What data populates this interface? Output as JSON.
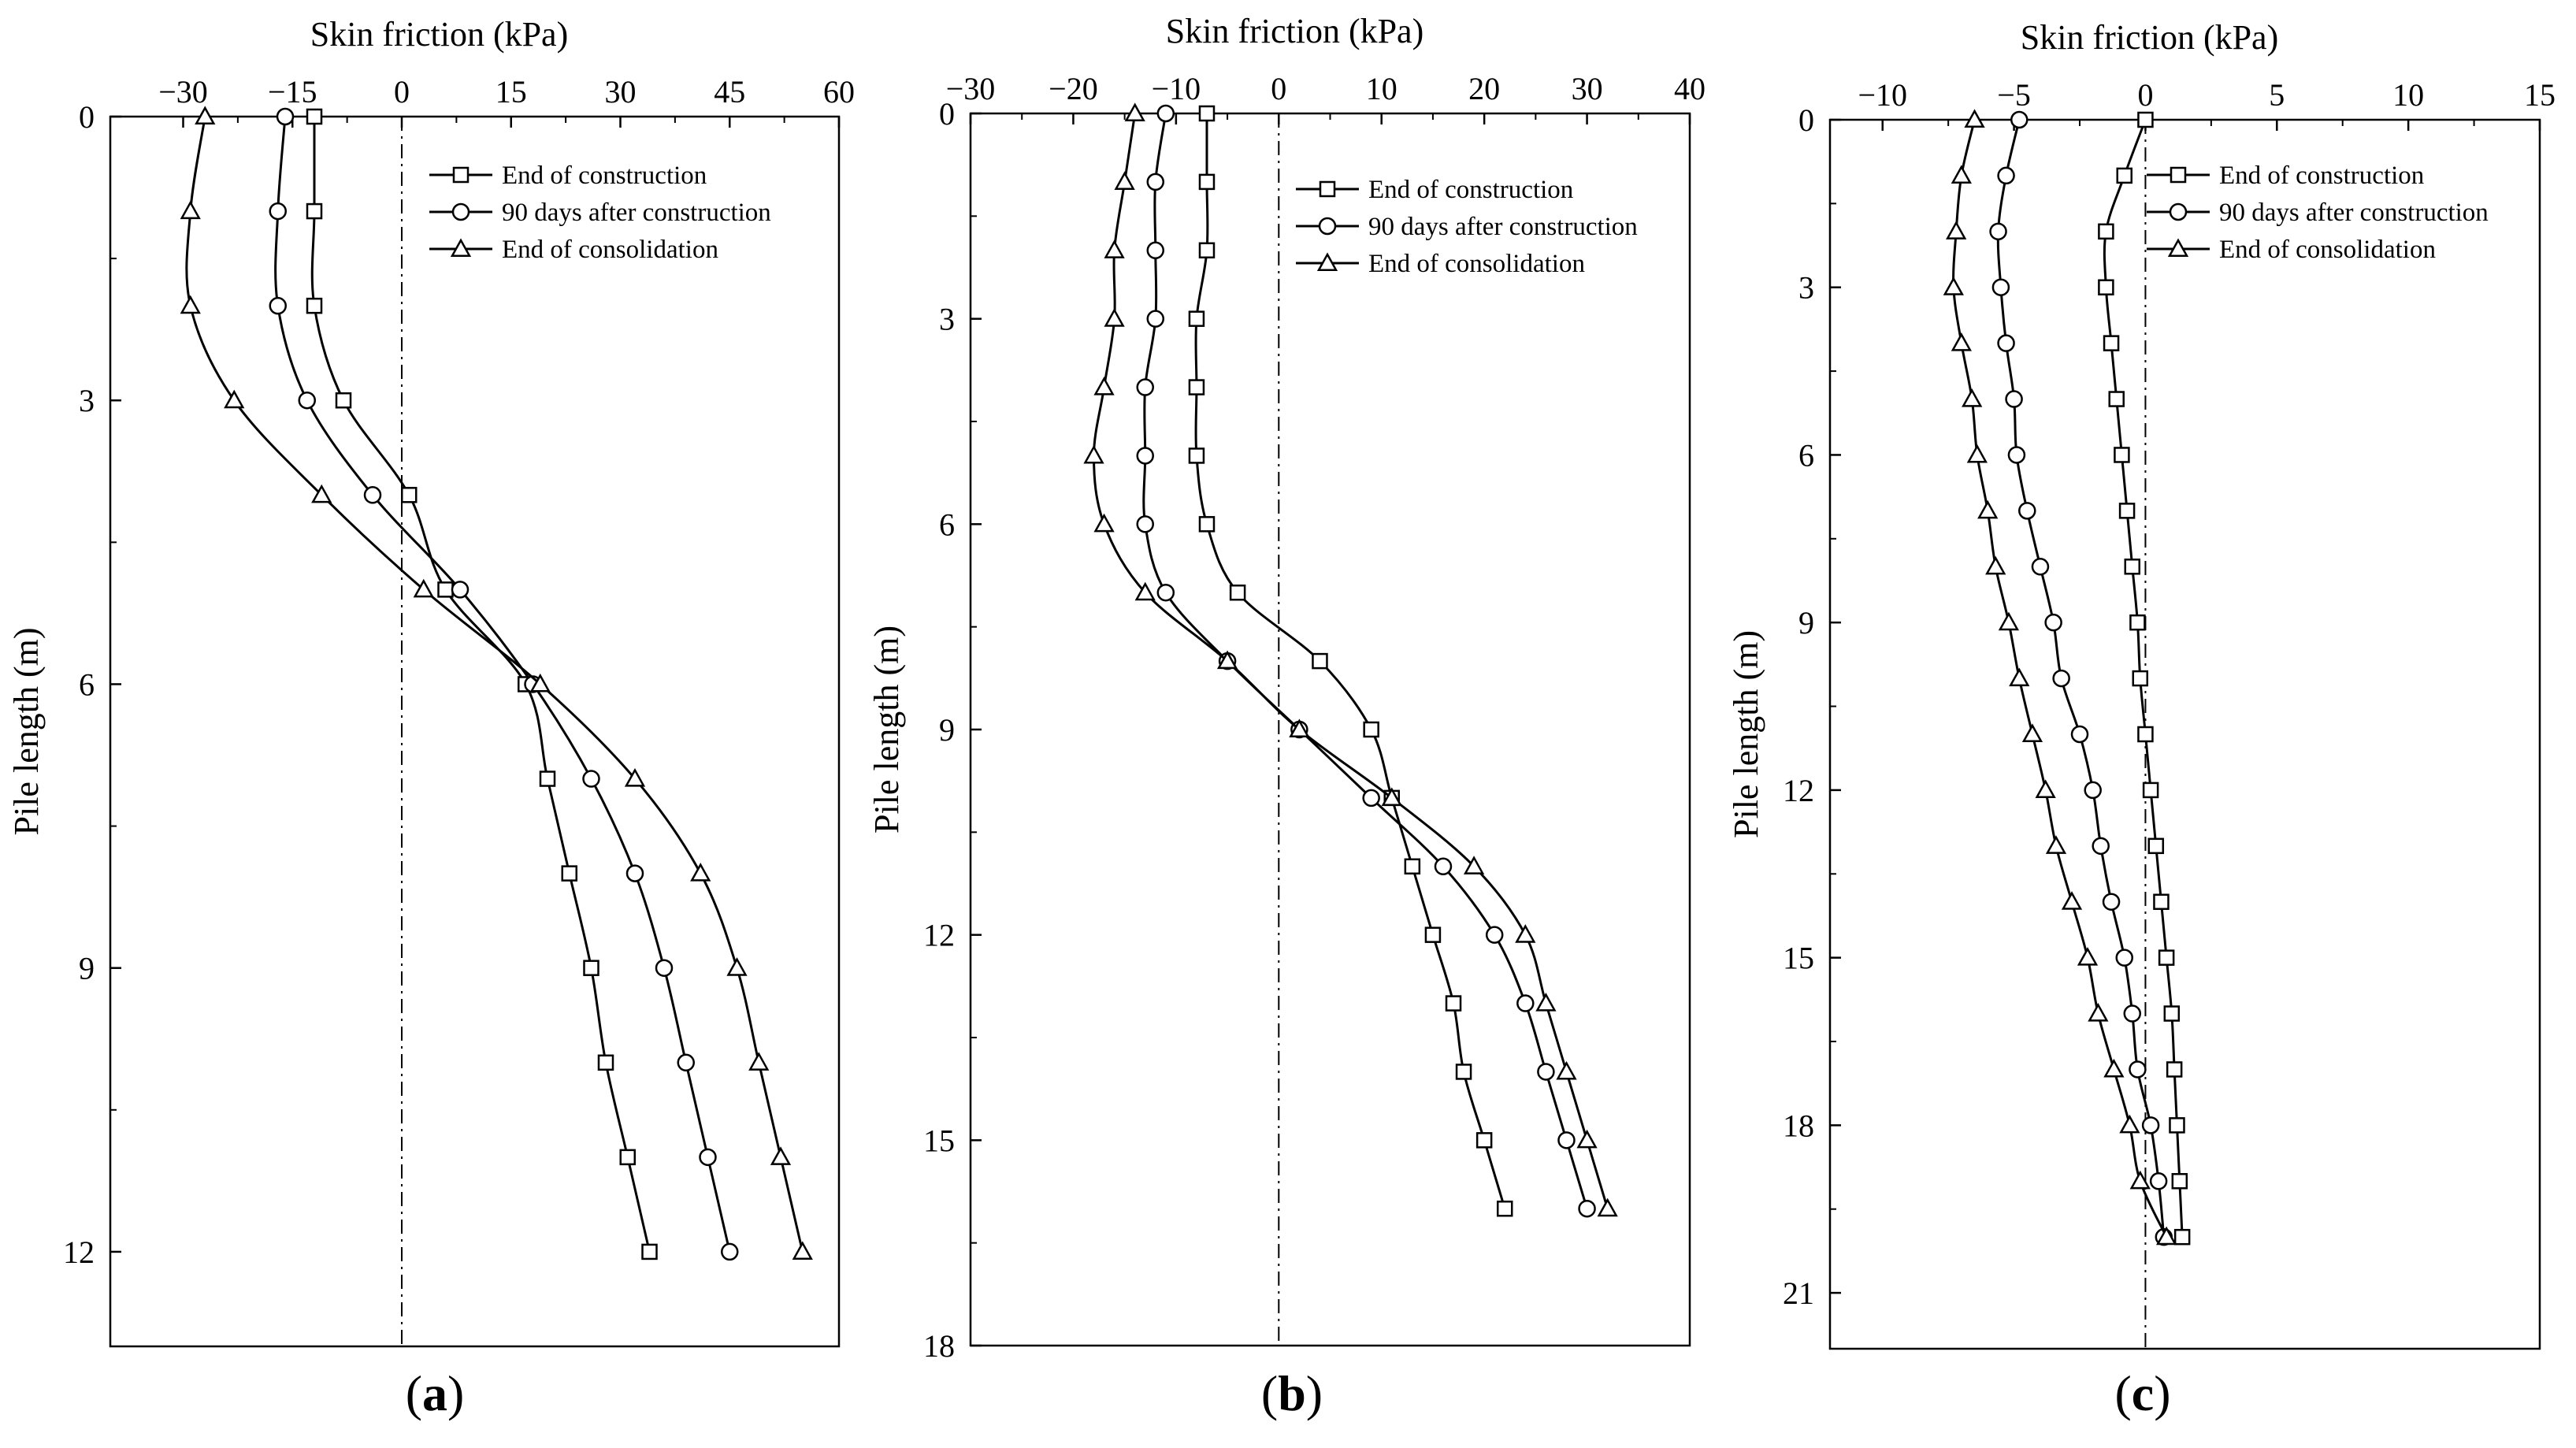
{
  "chart_data": [
    {
      "type": "line",
      "panel_label": "a",
      "xlabel": "Skin friction (kPa)",
      "ylabel": "Pile length (m)",
      "xlim": [
        -40,
        60
      ],
      "ylim": [
        13,
        0
      ],
      "xticks": [
        -30,
        -15,
        0,
        15,
        30,
        45,
        60
      ],
      "yticks": [
        0,
        3,
        6,
        9,
        12
      ],
      "grid": false,
      "legend_position": "top-right",
      "zero_reference_line": true,
      "series": [
        {
          "name": "End of construction",
          "marker": "square",
          "points": [
            [
              -12,
              0
            ],
            [
              -12,
              1
            ],
            [
              -12,
              2
            ],
            [
              -8,
              3
            ],
            [
              1,
              4
            ],
            [
              6,
              5
            ],
            [
              17,
              6
            ],
            [
              20,
              7
            ],
            [
              23,
              8
            ],
            [
              26,
              9
            ],
            [
              28,
              10
            ],
            [
              31,
              11
            ],
            [
              34,
              12
            ]
          ]
        },
        {
          "name": "90 days after construction",
          "marker": "circle",
          "points": [
            [
              -16,
              0
            ],
            [
              -17,
              1
            ],
            [
              -17,
              2
            ],
            [
              -13,
              3
            ],
            [
              -4,
              4
            ],
            [
              8,
              5
            ],
            [
              18,
              6
            ],
            [
              26,
              7
            ],
            [
              32,
              8
            ],
            [
              36,
              9
            ],
            [
              39,
              10
            ],
            [
              42,
              11
            ],
            [
              45,
              12
            ]
          ]
        },
        {
          "name": "End of consolidation",
          "marker": "triangle",
          "points": [
            [
              -27,
              0
            ],
            [
              -29,
              1
            ],
            [
              -29,
              2
            ],
            [
              -23,
              3
            ],
            [
              -11,
              4
            ],
            [
              3,
              5
            ],
            [
              19,
              6
            ],
            [
              32,
              7
            ],
            [
              41,
              8
            ],
            [
              46,
              9
            ],
            [
              49,
              10
            ],
            [
              52,
              11
            ],
            [
              55,
              12
            ]
          ]
        }
      ]
    },
    {
      "type": "line",
      "panel_label": "b",
      "xlabel": "Skin friction (kPa)",
      "ylabel": "Pile length (m)",
      "xlim": [
        -30,
        40
      ],
      "ylim": [
        18,
        0
      ],
      "xticks": [
        -30,
        -20,
        -10,
        0,
        10,
        20,
        30,
        40
      ],
      "yticks": [
        0,
        3,
        6,
        9,
        12,
        15,
        18
      ],
      "grid": false,
      "legend_position": "top-right",
      "zero_reference_line": true,
      "series": [
        {
          "name": "End of construction",
          "marker": "square",
          "points": [
            [
              -7,
              0
            ],
            [
              -7,
              1
            ],
            [
              -7,
              2
            ],
            [
              -8,
              3
            ],
            [
              -8,
              4
            ],
            [
              -8,
              5
            ],
            [
              -7,
              6
            ],
            [
              -4,
              7
            ],
            [
              4,
              8
            ],
            [
              9,
              9
            ],
            [
              11,
              10
            ],
            [
              13,
              11
            ],
            [
              15,
              12
            ],
            [
              17,
              13
            ],
            [
              18,
              14
            ],
            [
              20,
              15
            ],
            [
              22,
              16
            ]
          ]
        },
        {
          "name": "90 days after construction",
          "marker": "circle",
          "points": [
            [
              -11,
              0
            ],
            [
              -12,
              1
            ],
            [
              -12,
              2
            ],
            [
              -12,
              3
            ],
            [
              -13,
              4
            ],
            [
              -13,
              5
            ],
            [
              -13,
              6
            ],
            [
              -11,
              7
            ],
            [
              -5,
              8
            ],
            [
              2,
              9
            ],
            [
              9,
              10
            ],
            [
              16,
              11
            ],
            [
              21,
              12
            ],
            [
              24,
              13
            ],
            [
              26,
              14
            ],
            [
              28,
              15
            ],
            [
              30,
              16
            ]
          ]
        },
        {
          "name": "End of consolidation",
          "marker": "triangle",
          "points": [
            [
              -14,
              0
            ],
            [
              -15,
              1
            ],
            [
              -16,
              2
            ],
            [
              -16,
              3
            ],
            [
              -17,
              4
            ],
            [
              -18,
              5
            ],
            [
              -17,
              6
            ],
            [
              -13,
              7
            ],
            [
              -5,
              8
            ],
            [
              2,
              9
            ],
            [
              11,
              10
            ],
            [
              19,
              11
            ],
            [
              24,
              12
            ],
            [
              26,
              13
            ],
            [
              28,
              14
            ],
            [
              30,
              15
            ],
            [
              32,
              16
            ]
          ]
        }
      ]
    },
    {
      "type": "line",
      "panel_label": "c",
      "xlabel": "Skin friction (kPa)",
      "ylabel": "Pile length (m)",
      "xlim": [
        -12,
        15
      ],
      "ylim": [
        22,
        0
      ],
      "xticks": [
        -10,
        -5,
        0,
        5,
        10,
        15
      ],
      "yticks": [
        0,
        3,
        6,
        9,
        12,
        15,
        18,
        21
      ],
      "grid": false,
      "legend_position": "top-right",
      "zero_reference_line": true,
      "series": [
        {
          "name": "End of construction",
          "marker": "square",
          "points": [
            [
              0,
              0
            ],
            [
              -0.8,
              1
            ],
            [
              -1.5,
              2
            ],
            [
              -1.5,
              3
            ],
            [
              -1.3,
              4
            ],
            [
              -1.1,
              5
            ],
            [
              -0.9,
              6
            ],
            [
              -0.7,
              7
            ],
            [
              -0.5,
              8
            ],
            [
              -0.3,
              9
            ],
            [
              -0.2,
              10
            ],
            [
              0,
              11
            ],
            [
              0.2,
              12
            ],
            [
              0.4,
              13
            ],
            [
              0.6,
              14
            ],
            [
              0.8,
              15
            ],
            [
              1,
              16
            ],
            [
              1.1,
              17
            ],
            [
              1.2,
              18
            ],
            [
              1.3,
              19
            ],
            [
              1.4,
              20
            ]
          ]
        },
        {
          "name": "90 days after construction",
          "marker": "circle",
          "points": [
            [
              -4.8,
              0
            ],
            [
              -5.3,
              1
            ],
            [
              -5.6,
              2
            ],
            [
              -5.5,
              3
            ],
            [
              -5.3,
              4
            ],
            [
              -5,
              5
            ],
            [
              -4.9,
              6
            ],
            [
              -4.5,
              7
            ],
            [
              -4,
              8
            ],
            [
              -3.5,
              9
            ],
            [
              -3.2,
              10
            ],
            [
              -2.5,
              11
            ],
            [
              -2,
              12
            ],
            [
              -1.7,
              13
            ],
            [
              -1.3,
              14
            ],
            [
              -0.8,
              15
            ],
            [
              -0.5,
              16
            ],
            [
              -0.3,
              17
            ],
            [
              0.2,
              18
            ],
            [
              0.5,
              19
            ],
            [
              0.7,
              20
            ]
          ]
        },
        {
          "name": "End of consolidation",
          "marker": "triangle",
          "points": [
            [
              -6.5,
              0
            ],
            [
              -7,
              1
            ],
            [
              -7.2,
              2
            ],
            [
              -7.3,
              3
            ],
            [
              -7,
              4
            ],
            [
              -6.6,
              5
            ],
            [
              -6.4,
              6
            ],
            [
              -6,
              7
            ],
            [
              -5.7,
              8
            ],
            [
              -5.2,
              9
            ],
            [
              -4.8,
              10
            ],
            [
              -4.3,
              11
            ],
            [
              -3.8,
              12
            ],
            [
              -3.4,
              13
            ],
            [
              -2.8,
              14
            ],
            [
              -2.2,
              15
            ],
            [
              -1.8,
              16
            ],
            [
              -1.2,
              17
            ],
            [
              -0.6,
              18
            ],
            [
              -0.2,
              19
            ],
            [
              0.8,
              20
            ]
          ]
        }
      ]
    }
  ]
}
